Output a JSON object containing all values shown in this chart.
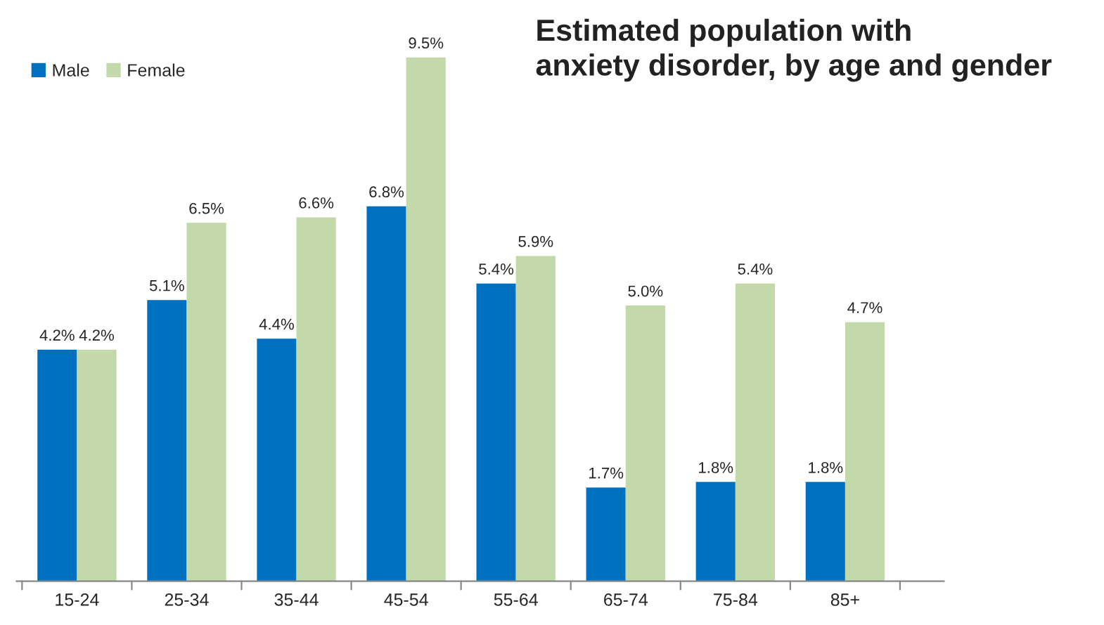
{
  "chart_data": {
    "type": "bar",
    "title": "Estimated population with\nanxiety disorder, by age and gender",
    "categories": [
      "15-24",
      "25-34",
      "35-44",
      "45-54",
      "55-64",
      "65-74",
      "75-84",
      "85+"
    ],
    "series": [
      {
        "name": "Male",
        "color": "#0070c0",
        "values": [
          4.2,
          5.1,
          4.4,
          6.8,
          5.4,
          1.7,
          1.8,
          1.8
        ],
        "value_labels": [
          "4.2%",
          "5.1%",
          "4.4%",
          "6.8%",
          "5.4%",
          "1.7%",
          "1.8%",
          "1.8%"
        ]
      },
      {
        "name": "Female",
        "color": "#c3d9a9",
        "values": [
          4.2,
          6.5,
          6.6,
          9.5,
          5.9,
          5.0,
          5.4,
          4.7
        ],
        "value_labels": [
          "4.2%",
          "6.5%",
          "6.6%",
          "9.5%",
          "5.9%",
          "5.0%",
          "5.4%",
          "4.7%"
        ]
      }
    ],
    "legend": "top left",
    "grid": false
  }
}
